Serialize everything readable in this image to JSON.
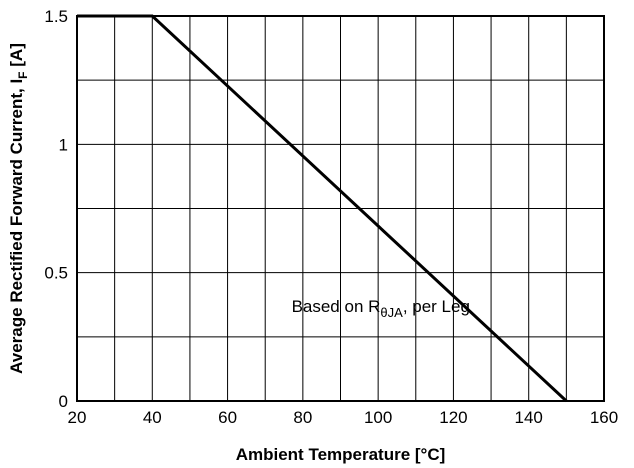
{
  "chart_data": {
    "type": "line",
    "xlabel": "Ambient Temperature [°C]",
    "ylabel": {
      "main": "Average Rectified Forward Current, I",
      "sub": "F",
      "unit": " [A]"
    },
    "xlim": [
      20,
      160
    ],
    "ylim": [
      0,
      1.5
    ],
    "grid": true,
    "x_ticks": [
      20,
      40,
      60,
      80,
      100,
      120,
      140,
      160
    ],
    "x_tick_labels": [
      "20",
      "40",
      "60",
      "80",
      "100",
      "120",
      "140",
      "160"
    ],
    "y_ticks": [
      0,
      0.5,
      1,
      1.5
    ],
    "y_tick_labels": [
      "0",
      "0.5",
      "1",
      "1.5"
    ],
    "x_grid": [
      20,
      30,
      40,
      50,
      60,
      70,
      80,
      90,
      100,
      110,
      120,
      130,
      140,
      150,
      160
    ],
    "y_grid": [
      0,
      0.25,
      0.5,
      0.75,
      1,
      1.25,
      1.5
    ],
    "series": [
      {
        "x": [
          20,
          40,
          150
        ],
        "y": [
          1.5,
          1.5,
          0
        ]
      }
    ],
    "annotation": {
      "main": "Based on R",
      "sub": "θJA",
      "rest": ", per Leg",
      "x": 77,
      "y": 0.37
    }
  }
}
